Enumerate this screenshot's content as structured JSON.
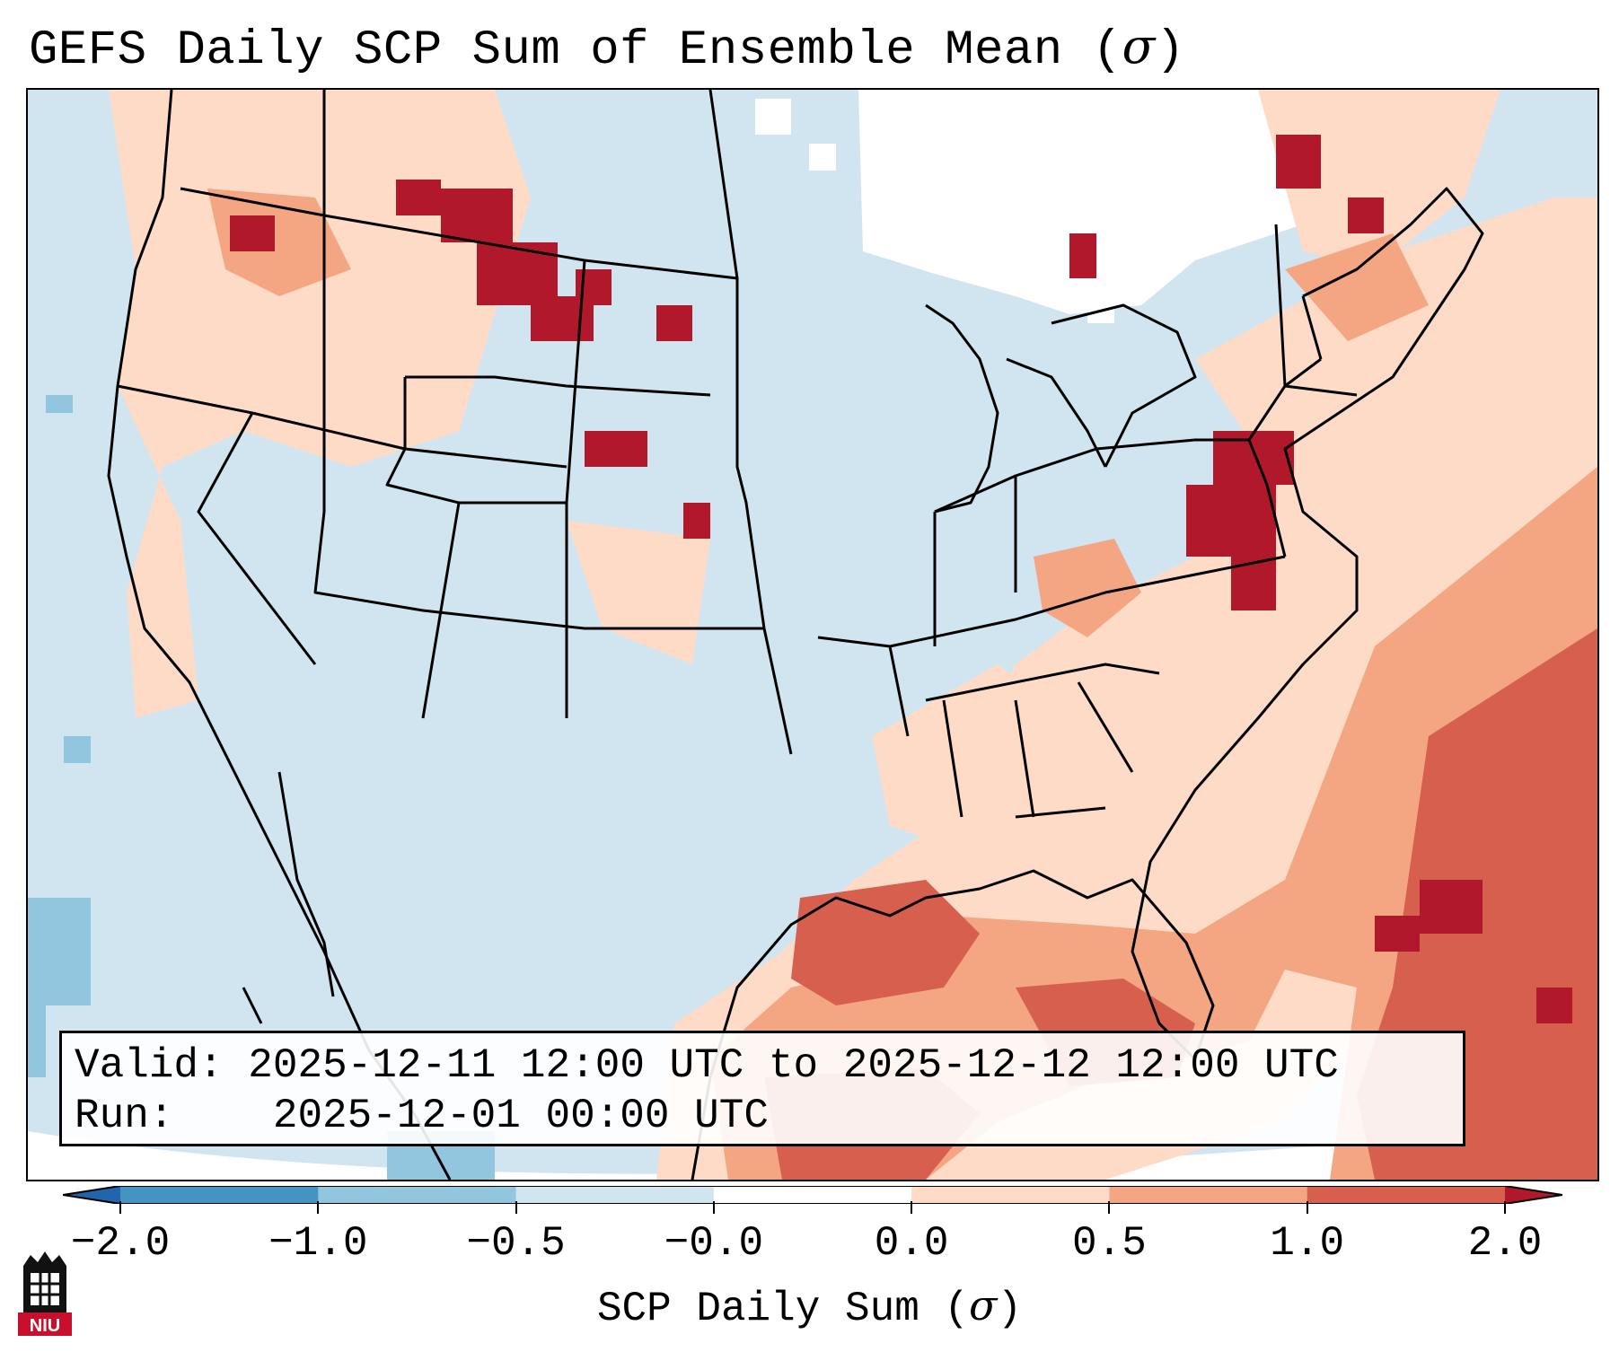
{
  "title": "GEFS Daily SCP Sum of Ensemble Mean (σ)",
  "info": {
    "valid_label": "Valid:",
    "valid_value": "2025-12-11 12:00 UTC to 2025-12-12 12:00 UTC",
    "run_label": "Run:",
    "run_value": "2025-12-01 00:00 UTC"
  },
  "colorbar": {
    "label": "SCP Daily Sum (σ)",
    "ticks": [
      "−2.0",
      "−1.0",
      "−0.5",
      "−0.0",
      "0.0",
      "0.5",
      "1.0",
      "2.0"
    ],
    "bin_colors": [
      "#2166ac",
      "#4393c3",
      "#92c5de",
      "#d1e5f0",
      "#fddbc7",
      "#f4a582",
      "#d6604d",
      "#b2182b"
    ]
  },
  "legend_colors": {
    "below_min": "#2166ac",
    "above_max": "#b2182b",
    "ocean_neutral": "#ffffff"
  },
  "logo": {
    "text": "NIU",
    "color": "#c8102e"
  }
}
